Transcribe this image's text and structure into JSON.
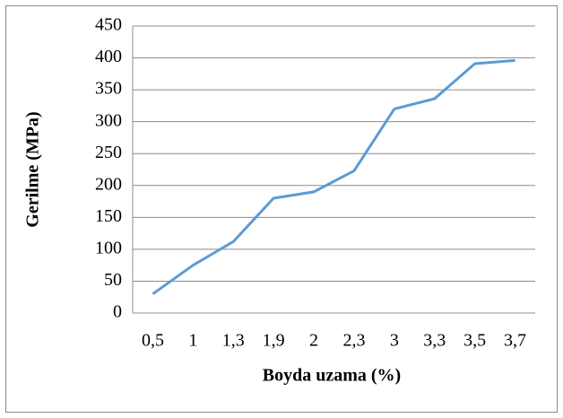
{
  "chart_data": {
    "type": "line",
    "x_label": "Boyda uzama (%)",
    "y_label": "Gerilme (MPa)",
    "categories": [
      "0,5",
      "1",
      "1,3",
      "1,9",
      "2",
      "2,3",
      "3",
      "3,3",
      "3,5",
      "3,7"
    ],
    "values": [
      30,
      75,
      112,
      180,
      190,
      223,
      320,
      336,
      391,
      396
    ],
    "color": "#5b9bd5",
    "ylim": [
      0,
      450
    ],
    "yticks": [
      0,
      50,
      100,
      150,
      200,
      250,
      300,
      350,
      400,
      450
    ],
    "grid": true
  }
}
